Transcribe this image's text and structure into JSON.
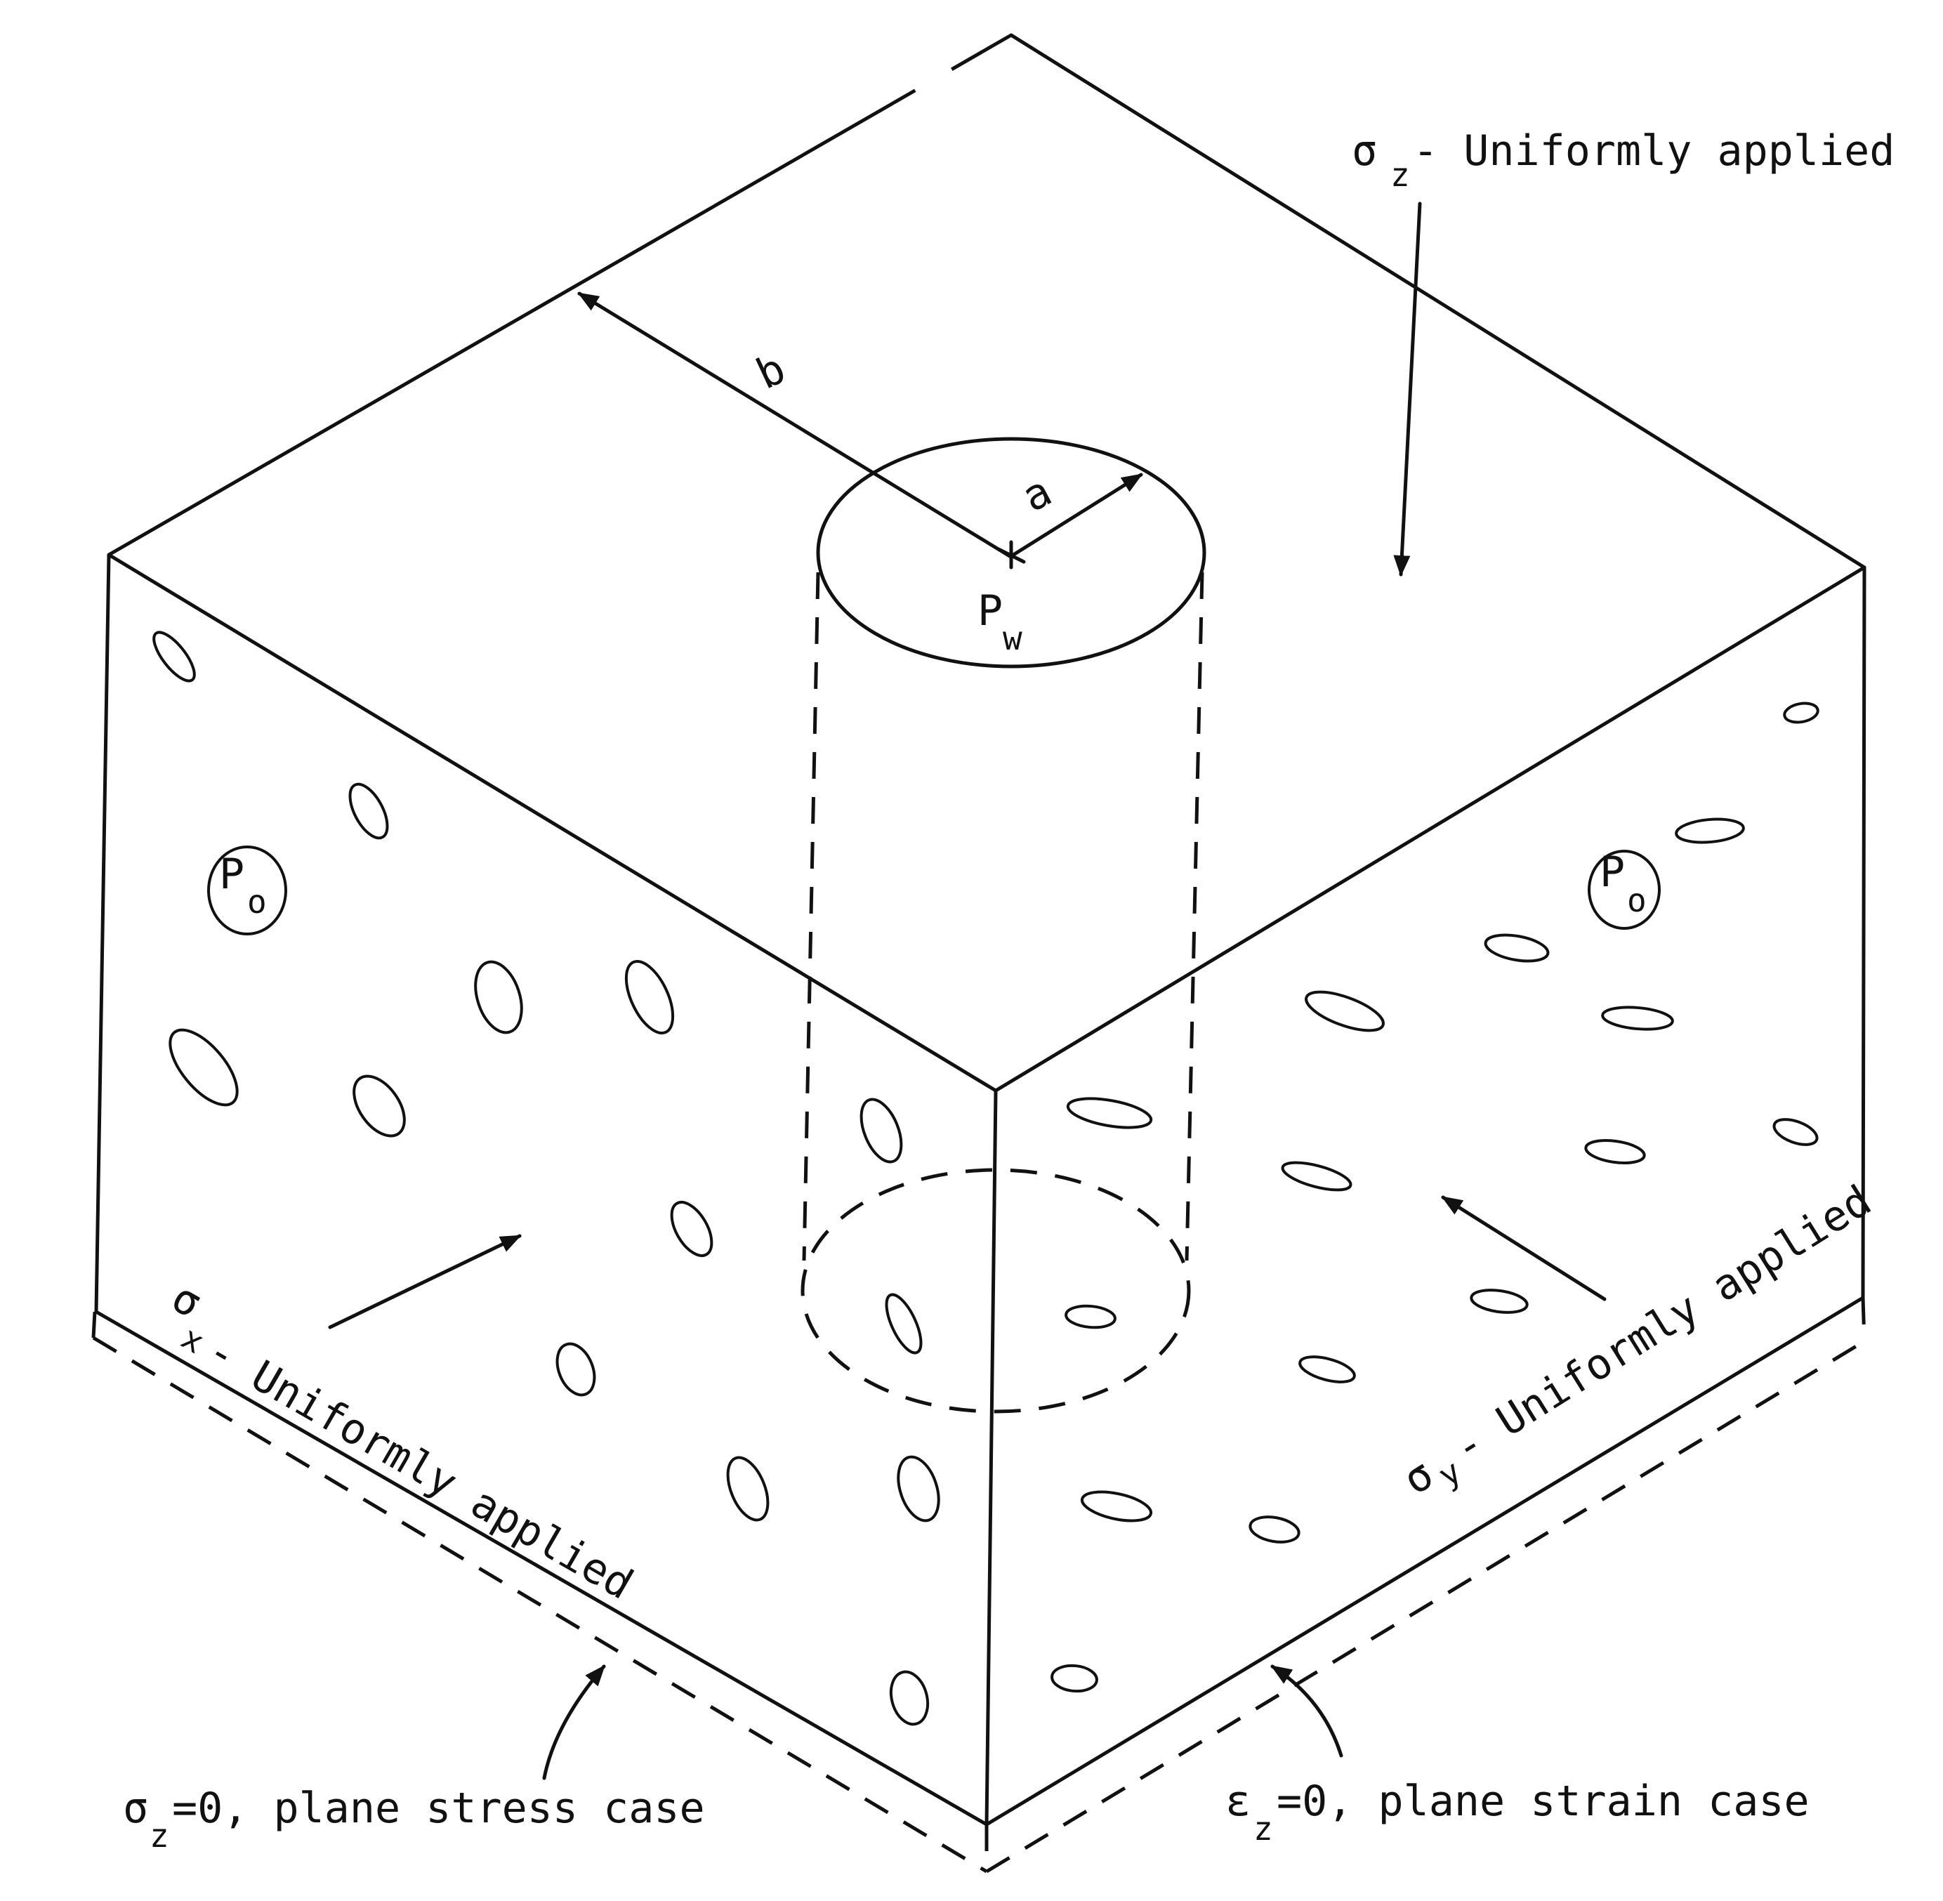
{
  "labels": {
    "sigma": "σ",
    "epsilon": "ε",
    "sub_z": "z",
    "sub_x": "x",
    "sub_y": "y",
    "sub_w": "w",
    "sub_o": "o",
    "P": "P",
    "uniformly_applied": "- Uniformly applied",
    "dim_b": "b",
    "dim_a": "a",
    "plane_stress": "=0, plane stress case",
    "plane_strain": "=0, plane strain case"
  },
  "colors": {
    "ink": "#111111",
    "paper": "#ffffff"
  }
}
